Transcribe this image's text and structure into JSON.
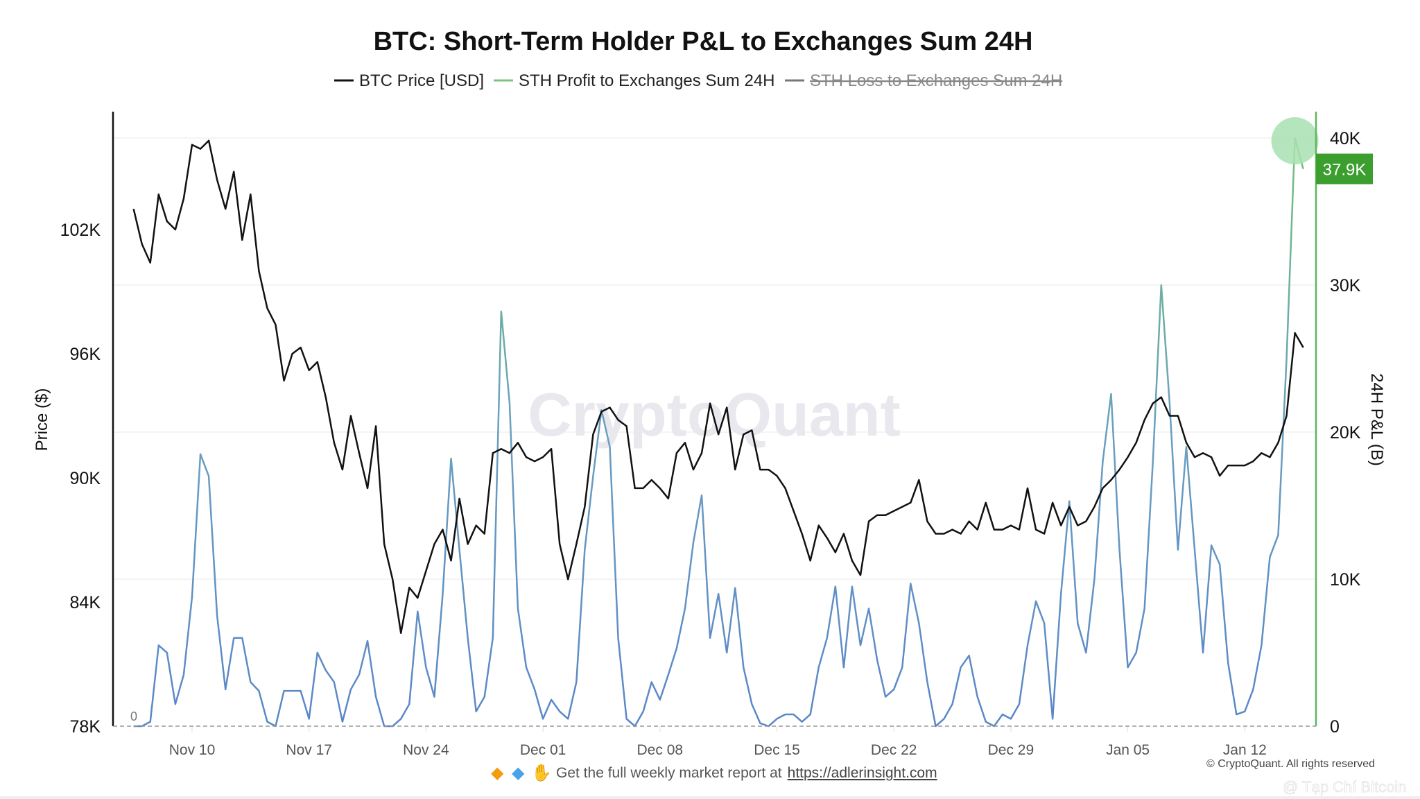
{
  "chart_data": {
    "type": "line",
    "title": "BTC: Short-Term Holder P&L to Exchanges Sum 24H",
    "legend": [
      {
        "label": "BTC Price [USD]",
        "color": "#111111",
        "hidden": false
      },
      {
        "label": "STH Profit to Exchanges Sum 24H",
        "color": "#7cc47f",
        "hidden": false
      },
      {
        "label": "STH Loss to Exchanges Sum 24H",
        "color": "#777777",
        "hidden": true
      }
    ],
    "legend_placement": "top-center",
    "ylabel_left": "Price ($)",
    "ylabel_right": "24H P&L (B)",
    "y_left_ticks": [
      "78K",
      "84K",
      "90K",
      "96K",
      "102K"
    ],
    "y_left_tick_values": [
      78,
      84,
      90,
      96,
      102
    ],
    "y_left_range": [
      78,
      108
    ],
    "y_right_ticks": [
      "0",
      "10K",
      "20K",
      "30K",
      "40K"
    ],
    "y_right_tick_values": [
      0,
      10,
      20,
      30,
      40
    ],
    "y_right_range": [
      0,
      42
    ],
    "x_ticks": [
      "Nov 10",
      "Nov 17",
      "Nov 24",
      "Dec 01",
      "Dec 08",
      "Dec 15",
      "Dec 22",
      "Dec 29",
      "Jan 05",
      "Jan 12"
    ],
    "zero_label": "0",
    "grid": true,
    "last_value_label": "37.9K",
    "series": [
      {
        "name": "BTC Price [USD]",
        "unit": "K USD",
        "axis": "left",
        "x_start": "Nov 06 12:00",
        "interval_hours": 12,
        "values": [
          103.0,
          101.3,
          100.4,
          103.7,
          102.4,
          102.0,
          103.5,
          106.1,
          105.9,
          106.3,
          104.4,
          103.0,
          104.8,
          101.5,
          103.7,
          100.0,
          98.2,
          97.4,
          94.7,
          96.0,
          96.3,
          95.2,
          95.6,
          93.9,
          91.7,
          90.4,
          93.0,
          91.2,
          89.5,
          92.5,
          86.8,
          85.1,
          82.5,
          84.7,
          84.2,
          85.5,
          86.8,
          87.5,
          86.0,
          89.0,
          86.8,
          87.7,
          87.3,
          91.2,
          91.4,
          91.2,
          91.7,
          91.0,
          90.8,
          91.0,
          91.4,
          86.8,
          85.1,
          86.8,
          88.6,
          92.1,
          93.2,
          93.4,
          92.8,
          92.5,
          89.5,
          89.5,
          89.9,
          89.5,
          89.0,
          91.2,
          91.7,
          90.4,
          91.2,
          93.6,
          92.1,
          93.4,
          90.4,
          92.1,
          92.3,
          90.4,
          90.4,
          90.1,
          89.5,
          88.4,
          87.3,
          86.0,
          87.7,
          87.1,
          86.4,
          87.3,
          86.0,
          85.3,
          87.9,
          88.2,
          88.2,
          88.4,
          88.6,
          88.8,
          89.9,
          87.9,
          87.3,
          87.3,
          87.5,
          87.3,
          87.9,
          87.5,
          88.8,
          87.5,
          87.5,
          87.7,
          87.5,
          89.5,
          87.5,
          87.3,
          88.8,
          87.7,
          88.6,
          87.7,
          87.9,
          88.6,
          89.5,
          89.9,
          90.4,
          91.0,
          91.7,
          92.8,
          93.6,
          93.9,
          93.0,
          93.0,
          91.7,
          91.0,
          91.2,
          91.0,
          90.1,
          90.6,
          90.6,
          90.6,
          90.8,
          91.2,
          91.0,
          91.7,
          93.0,
          97.0,
          96.3
        ]
      },
      {
        "name": "STH Profit to Exchanges Sum 24H",
        "unit": "K",
        "axis": "right",
        "x_start": "Nov 06 12:00",
        "interval_hours": 12,
        "values": [
          0,
          0,
          0.3,
          5.5,
          5.0,
          1.5,
          3.5,
          8.8,
          18.5,
          17.0,
          7.5,
          2.5,
          6.0,
          6.0,
          3.0,
          2.4,
          0.3,
          0,
          2.4,
          2.4,
          2.4,
          0.5,
          5.0,
          3.8,
          3.0,
          0.3,
          2.5,
          3.5,
          5.8,
          2.0,
          0,
          0,
          0.5,
          1.5,
          7.8,
          4.0,
          2.0,
          9.0,
          18.2,
          12.0,
          6.0,
          1.0,
          2.0,
          6.0,
          28.2,
          22.0,
          8.0,
          4.0,
          2.5,
          0.5,
          1.8,
          1.0,
          0.5,
          3.0,
          12.0,
          17.0,
          21.5,
          19.0,
          6.0,
          0.5,
          0,
          1.0,
          3.0,
          1.8,
          3.5,
          5.3,
          8.0,
          12.5,
          15.7,
          6.0,
          9.0,
          5.0,
          9.4,
          4.0,
          1.5,
          0.2,
          0,
          0.5,
          0.8,
          0.8,
          0.3,
          0.8,
          4.0,
          6.0,
          9.5,
          4.0,
          9.5,
          5.5,
          8.0,
          4.5,
          2.0,
          2.5,
          4.0,
          9.7,
          7.0,
          3.0,
          0,
          0.5,
          1.5,
          4.0,
          4.8,
          2.0,
          0.3,
          0,
          0.8,
          0.5,
          1.5,
          5.5,
          8.5,
          7.0,
          0.5,
          9.0,
          15.3,
          7.0,
          5.0,
          10.0,
          18.0,
          22.6,
          12.0,
          4.0,
          5.0,
          8.0,
          18.0,
          30.0,
          22.0,
          12.0,
          19.0,
          12.0,
          5.0,
          12.3,
          11.0,
          4.3,
          0.8,
          1.0,
          2.5,
          5.5,
          11.5,
          13.0,
          25.0,
          40.0,
          37.9
        ]
      }
    ]
  },
  "watermark": "CryptoQuant",
  "footer": {
    "icons": [
      "orange-diamond-icon",
      "blue-gem-icon",
      "raised-hands-icon"
    ],
    "text": "Get the full weekly market report at",
    "link": "https://adlerinsight.com",
    "copyright": "© CryptoQuant. All rights reserved",
    "overlay_watermark": "@ Tạp Chí Bitcoin"
  },
  "colors": {
    "price": "#111111",
    "profit_low": "#5a86c8",
    "profit_high": "#72c279",
    "right_axis": "#5cb85c",
    "value_badge": "#3b9e2e",
    "highlight": "#a8e0b0"
  }
}
